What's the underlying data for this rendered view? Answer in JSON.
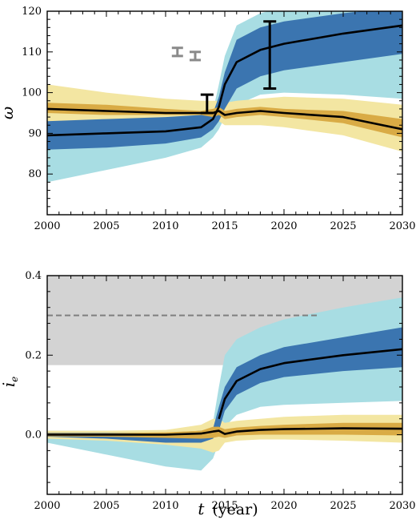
{
  "colors": {
    "blue_outer": "#a8dde3",
    "blue_inner": "#3b75b0",
    "yellow_outer": "#f3e6a2",
    "yellow_inner": "#d9ab45",
    "median_line": "#000000",
    "gray_band": "#d3d3d3",
    "dashed_line": "#7f7f7f",
    "gray_errorbar": "#8a8a8a"
  },
  "chart_data": [
    {
      "type": "line",
      "panel": "top",
      "ylabel": "ω",
      "xlabel": "",
      "xlim": [
        2000,
        2030
      ],
      "ylim": [
        70,
        120
      ],
      "xticks": [
        "2000",
        "2005",
        "2010",
        "2015",
        "2020",
        "2025",
        "2030"
      ],
      "yticks": [
        "80",
        "90",
        "100",
        "110",
        "120"
      ],
      "x": [
        2000,
        2005,
        2010,
        2013,
        2014,
        2014.5,
        2015,
        2016,
        2018,
        2020,
        2025,
        2030
      ],
      "series": [
        {
          "color": "blue",
          "median": [
            89.5,
            90,
            90.5,
            91.5,
            93.5,
            96.5,
            102,
            107.5,
            110.5,
            112,
            114.5,
            116.5
          ],
          "inner_band": [
            [
              86,
              93
            ],
            [
              86.5,
              93.5
            ],
            [
              87.5,
              94
            ],
            [
              89,
              94.5
            ],
            [
              91,
              95
            ],
            [
              93,
              99
            ],
            [
              96,
              105
            ],
            [
              101,
              113
            ],
            [
              104,
              116
            ],
            [
              105.5,
              117.5
            ],
            [
              107.5,
              119.5
            ],
            [
              109.5,
              121
            ]
          ],
          "outer_band": [
            [
              78,
              97
            ],
            [
              81,
              96.5
            ],
            [
              84,
              96
            ],
            [
              86.5,
              95.5
            ],
            [
              89,
              95.5
            ],
            [
              91,
              102
            ],
            [
              94,
              109
            ],
            [
              97,
              116.5
            ],
            [
              99.5,
              119.5
            ],
            [
              100,
              121
            ],
            [
              99.5,
              121
            ],
            [
              98.5,
              121
            ]
          ]
        },
        {
          "color": "yellow",
          "median": [
            96,
            95.5,
            95,
            95,
            95,
            95.5,
            94.5,
            95,
            95.5,
            95,
            94,
            91
          ],
          "inner_band": [
            [
              95,
              97.5
            ],
            [
              94.5,
              97
            ],
            [
              94.5,
              96
            ],
            [
              94.5,
              95.5
            ],
            [
              94,
              96
            ],
            [
              94.5,
              96.5
            ],
            [
              93.5,
              95.5
            ],
            [
              94,
              96
            ],
            [
              94.5,
              96.5
            ],
            [
              94,
              96
            ],
            [
              92.5,
              95.5
            ],
            [
              89,
              93.5
            ]
          ],
          "outer_band": [
            [
              89.5,
              102
            ],
            [
              91.5,
              100
            ],
            [
              92.5,
              98.5
            ],
            [
              93,
              98
            ],
            [
              92.5,
              98
            ],
            [
              93,
              98
            ],
            [
              92,
              97.5
            ],
            [
              92,
              98
            ],
            [
              92,
              98.5
            ],
            [
              91.5,
              99
            ],
            [
              89.5,
              98.5
            ],
            [
              85.5,
              97
            ]
          ]
        }
      ],
      "error_bars": [
        {
          "x": 2011,
          "low": 109,
          "high": 111,
          "color": "gray"
        },
        {
          "x": 2012.5,
          "low": 108,
          "high": 110,
          "color": "gray"
        },
        {
          "x": 2013.5,
          "low": 95,
          "high": 99.5,
          "color": "black"
        },
        {
          "x": 2018.8,
          "low": 101,
          "high": 117.5,
          "color": "black"
        }
      ]
    },
    {
      "type": "line",
      "panel": "bottom",
      "ylabel": "i",
      "ylabel_sub": "e",
      "xlabel": "t",
      "xlabel_unit": "(year)",
      "xlim": [
        2000,
        2030
      ],
      "ylim": [
        -0.15,
        0.4
      ],
      "xticks": [
        "2000",
        "2005",
        "2010",
        "2015",
        "2020",
        "2025",
        "2030"
      ],
      "yticks": [
        "0.0",
        "0.2",
        "0.4"
      ],
      "gray_band": [
        0.175,
        0.4
      ],
      "dashed_line": {
        "y": 0.3,
        "x_range": [
          2000,
          2023
        ]
      },
      "x": [
        2000,
        2005,
        2010,
        2013,
        2014,
        2014.5,
        2015,
        2016,
        2018,
        2020,
        2025,
        2030
      ],
      "series": [
        {
          "color": "blue",
          "median": [
            0,
            0,
            0,
            0.005,
            0.01,
            0.04,
            0.09,
            0.135,
            0.165,
            0.18,
            0.2,
            0.215
          ],
          "inner_band": [
            [
              -0.005,
              0.005
            ],
            [
              -0.01,
              0.005
            ],
            [
              -0.02,
              0.005
            ],
            [
              -0.02,
              0.01
            ],
            [
              -0.01,
              0.015
            ],
            [
              0.01,
              0.07
            ],
            [
              0.06,
              0.12
            ],
            [
              0.1,
              0.17
            ],
            [
              0.13,
              0.2
            ],
            [
              0.145,
              0.22
            ],
            [
              0.16,
              0.245
            ],
            [
              0.17,
              0.27
            ]
          ],
          "outer_band": [
            [
              -0.02,
              0.01
            ],
            [
              -0.05,
              0.01
            ],
            [
              -0.08,
              0.01
            ],
            [
              -0.09,
              0.02
            ],
            [
              -0.06,
              0.03
            ],
            [
              -0.02,
              0.12
            ],
            [
              0.02,
              0.2
            ],
            [
              0.05,
              0.24
            ],
            [
              0.07,
              0.27
            ],
            [
              0.075,
              0.29
            ],
            [
              0.08,
              0.32
            ],
            [
              0.085,
              0.345
            ]
          ],
          "start": 2014.5
        },
        {
          "color": "yellow",
          "median": [
            0,
            0,
            0,
            0.003,
            0.008,
            0.01,
            0.002,
            0.008,
            0.012,
            0.014,
            0.016,
            0.015
          ],
          "inner_band": [
            [
              -0.004,
              0.004
            ],
            [
              -0.005,
              0.004
            ],
            [
              -0.008,
              0.006
            ],
            [
              -0.01,
              0.01
            ],
            [
              -0.008,
              0.02
            ],
            [
              -0.005,
              0.02
            ],
            [
              -0.008,
              0.014
            ],
            [
              -0.002,
              0.018
            ],
            [
              0,
              0.022
            ],
            [
              0,
              0.025
            ],
            [
              0,
              0.03
            ],
            [
              -0.002,
              0.03
            ]
          ],
          "outer_band": [
            [
              -0.01,
              0.01
            ],
            [
              -0.015,
              0.01
            ],
            [
              -0.025,
              0.012
            ],
            [
              -0.035,
              0.025
            ],
            [
              -0.045,
              0.04
            ],
            [
              -0.04,
              0.04
            ],
            [
              -0.02,
              0.03
            ],
            [
              -0.015,
              0.035
            ],
            [
              -0.012,
              0.04
            ],
            [
              -0.012,
              0.045
            ],
            [
              -0.015,
              0.05
            ],
            [
              -0.02,
              0.05
            ]
          ]
        }
      ]
    }
  ]
}
